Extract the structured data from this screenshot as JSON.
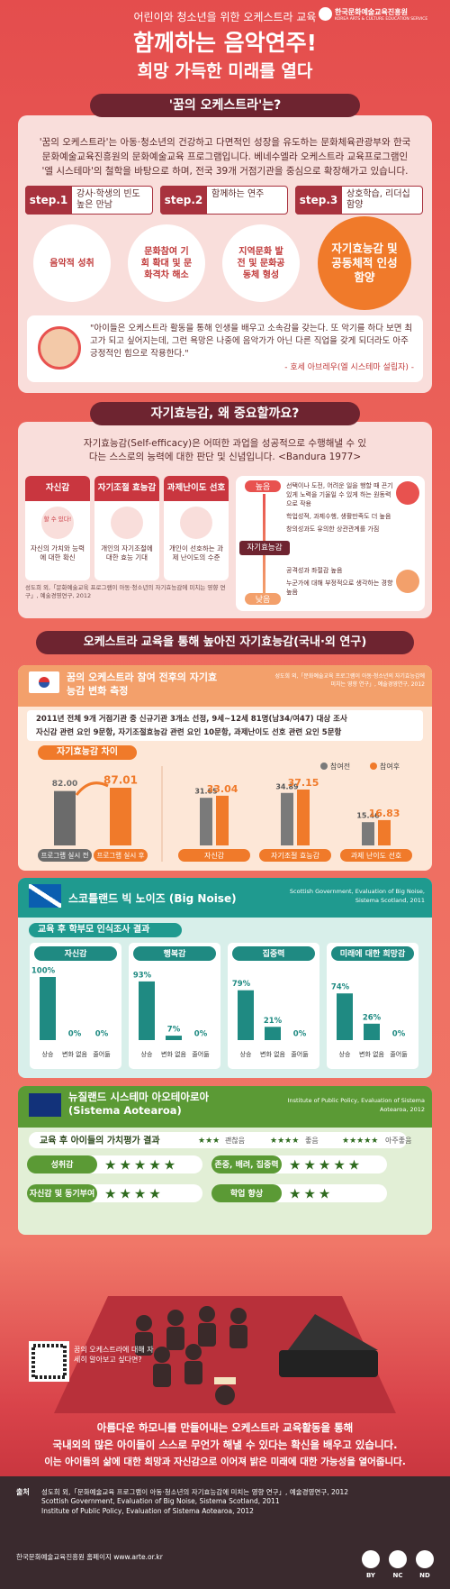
{
  "header": {
    "kicker": "어린이와 청소년을 위한 오케스트라 교육",
    "title": "함께하는 음악연주!",
    "subtitle": "희망 가득한 미래를 열다",
    "logo_name": "한국문화예술교육진흥원",
    "logo_name_en": "KOREA ARTS & CULTURE EDUCATION SERVICE"
  },
  "intro": {
    "heading": "'꿈의 오케스트라'는?",
    "body": "'꿈의 오케스트라'는 아동·청소년의 건강하고 다면적인 성장을 유도하는 문화체육관광부와 한국문화예술교육진흥원의 문화예술교육 프로그램입니다. 베네수엘라 오케스트라 교육프로그램인 '엘 시스테마'의 철학을 바탕으로 하며, 전국 39개 거점기관을 중심으로 확장해가고 있습니다.",
    "steps": [
      {
        "label": "step.1",
        "text": "강사·학생의 빈도 높은 만남"
      },
      {
        "label": "step.2",
        "text": "함께하는 연주"
      },
      {
        "label": "step.3",
        "text": "상호학습, 리더십 함양"
      }
    ],
    "goals": [
      "음악적 성취",
      "문화참여 기회 확대 및 문화격차 해소",
      "지역문화 발전 및 문화공동체 형성",
      "자기효능감 및 공동체적 인성 함양"
    ],
    "quote": "\"아이들은 오케스트라 활동을 통해 인생을 배우고 소속감을 갖는다. 또 악기를 하다 보면 최고가 되고 싶어지는데, 그런 욕망은 나중에 음악가가 아닌 다른 직업을 갖게 되더라도 아주 긍정적인 힘으로 작용한다.\"",
    "quote_author": "- 호세 아브레우(엘 시스테마 설립자) -"
  },
  "efficacy": {
    "heading": "자기효능감, 왜 중요할까요?",
    "body": "자기효능감(Self-efficacy)은 어떠한 과업을 성공적으로 수행해낼 수 있다는 스스로의 능력에 대한 판단 및 신념입니다. <Bandura 1977>",
    "factors": [
      {
        "name": "자신감",
        "desc": "자신의 가치와 능력에 대한 확신",
        "badge": "할 수 있다!"
      },
      {
        "name": "자기조절 효능감",
        "desc": "개인의 자기조절에 대한 효능 기대"
      },
      {
        "name": "과제난이도 선호",
        "desc": "개인이 선호하는 과제 난이도의 수준"
      }
    ],
    "factors_source": "성도희 외,「문화예술교육 프로그램이 아동·청소년의 자기효능감에 미치는 영향 연구」, 예술경영연구, 2012",
    "high_label": "높음",
    "high_items": [
      "선택이나 도전, 어려운 일을 행할 때 끈기 있게 노력을 기울일 수 있게 하는 원동력으로 작용",
      "학업성적, 과제수행, 생활만족도 더 높음",
      "창의성과도 유의한 상관관계를 가짐"
    ],
    "center_label": "자기효능감",
    "low_label": "낮음",
    "low_items": [
      "공격성과 좌절감 높음",
      "누군가에 대해 부정적으로 생각하는 경향 높음"
    ]
  },
  "research": {
    "heading": "오케스트라 교육을 통해 높아진 자기효능감(국내·외 연구)"
  },
  "korea": {
    "title": "꿈의 오케스트라 참여 전후의 자기효능감 변화 측정",
    "source": "성도희 외,「문화예술교육 프로그램이 아동·청소년의 자기효능감에 미치는 영향 연구」, 예술경영연구, 2012",
    "bullets": [
      "2011년 전체 9개 거점기관 중 신규기관 3개소 선정, 9세~12세 81명(남34/여47) 대상 조사",
      "자신감 관련 요인 9문항, 자기조절효능감 관련 요인 10문항, 과제난이도 선호 관련 요인 5문항"
    ]
  },
  "scotland": {
    "title": "스코틀랜드 빅 노이즈 (Big Noise)",
    "source": "Scottish Government, Evaluation of Big Noise, Sistema Scotland, 2011"
  },
  "nz": {
    "title": "뉴질랜드 시스테마 아오테아로아 (Sistema Aotearoa)",
    "source": "Institute of Public Policy, Evaluation of Sistema Aotearoa, 2012"
  },
  "chart_data": [
    {
      "type": "bar",
      "title": "자기효능감 차이",
      "categories": [
        "프로그램 실시 전",
        "프로그램 실시 후"
      ],
      "values": [
        82.0,
        87.01
      ],
      "value_labels": [
        "82.00",
        "87.01"
      ],
      "colors": [
        "#6b6b6b",
        "#f07a2a"
      ]
    },
    {
      "type": "grouped-bar",
      "categories": [
        "자신감",
        "자기조절 효능감",
        "과제 난이도 선호"
      ],
      "series": [
        {
          "name": "참여전",
          "color": "#7a7a7a",
          "values": [
            31.65,
            34.89,
            15.46
          ]
        },
        {
          "name": "참여후",
          "color": "#f07a2a",
          "values": [
            33.04,
            37.15,
            16.83
          ]
        }
      ],
      "legend": "top-right"
    },
    {
      "type": "bar-panels",
      "title": "교육 후 학부모 인식조사 결과",
      "categories": [
        "상승",
        "변화 없음",
        "줄어듦"
      ],
      "color": "#1f8a82",
      "ylim": [
        0,
        100
      ],
      "series": [
        {
          "name": "자신감",
          "values": [
            100,
            0,
            0
          ],
          "value_labels": [
            "100%",
            "0%",
            "0%"
          ]
        },
        {
          "name": "행복감",
          "values": [
            93,
            7,
            0
          ],
          "value_labels": [
            "93%",
            "7%",
            "0%"
          ]
        },
        {
          "name": "집중력",
          "values": [
            79,
            21,
            0
          ],
          "value_labels": [
            "79%",
            "21%",
            "0%"
          ]
        },
        {
          "name": "미래에 대한 희망감",
          "values": [
            74,
            26,
            0
          ],
          "value_labels": [
            "74%",
            "26%",
            "0%"
          ]
        }
      ]
    },
    {
      "type": "rating",
      "title": "교육 후 아이들의 가치평가 결과",
      "scale": [
        {
          "stars": 3,
          "label": "괜찮음"
        },
        {
          "stars": 4,
          "label": "좋음"
        },
        {
          "stars": 5,
          "label": "아주좋음"
        }
      ],
      "categories": [
        "성취감",
        "존중, 배려, 집중력",
        "자신감 및 동기부여",
        "학업 향상"
      ],
      "values": [
        5,
        5,
        4,
        3
      ],
      "color": "#2f6b1f"
    }
  ],
  "closing": {
    "qr_text": "꿈의 오케스트라에 대해 자세히 알아보고 싶다면?",
    "lines": [
      "아름다운 하모니를 만들어내는 오케스트라 교육활동을 통해",
      "국내외의 많은 아이들이 스스로 무언가 해낼 수 있다는 확신을 배우고 있습니다.",
      "이는 아이들의 삶에 대한 희망과 자신감으로 이어져 밝은 미래에 대한 가능성을 열어줍니다."
    ]
  },
  "footer": {
    "source_label": "출처",
    "sources": [
      "성도희 외,「문화예술교육 프로그램이 아동·청소년의 자기효능감에 미치는 영향 연구」, 예술경영연구, 2012",
      "Scottish Government, Evaluation of Big Noise, Sistema Scotland, 2011",
      "Institute of Public Policy, Evaluation of Sistema Aotearoa, 2012"
    ],
    "homepage": "한국문화예술교육진흥원 홈페이지 www.arte.or.kr",
    "license": [
      "BY",
      "NC",
      "ND"
    ]
  }
}
